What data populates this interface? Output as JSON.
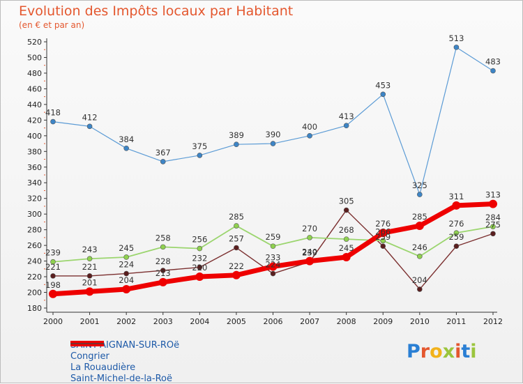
{
  "header": {
    "title": "Evolution des Impôts locaux par Habitant",
    "subtitle": "(en € et par an)"
  },
  "logo": {
    "text": "Proxiti",
    "colors": [
      "#2a7fd4",
      "#e4572e",
      "#f2b21b",
      "#9bc53d",
      "#e4572e",
      "#2a7fd4",
      "#9bc53d"
    ]
  },
  "chart_data": {
    "type": "line",
    "title": "Evolution des Impôts locaux par Habitant",
    "subtitle": "(en € et par an)",
    "x": [
      "2000",
      "2001",
      "2002",
      "2003",
      "2004",
      "2005",
      "2006",
      "2007",
      "2008",
      "2009",
      "2010",
      "2011",
      "2012"
    ],
    "ylim": [
      180,
      520
    ],
    "yticks": [
      180,
      200,
      220,
      240,
      260,
      280,
      300,
      320,
      340,
      360,
      380,
      400,
      420,
      440,
      460,
      480,
      500,
      520
    ],
    "grid": false,
    "legend_position": "bottom-left",
    "series": [
      {
        "name": "SAINT-AIGNAN-SUR-ROë",
        "color": "#ee0000",
        "width": 7,
        "values": [
          198,
          201,
          204,
          213,
          220,
          222,
          233,
          240,
          245,
          276,
          285,
          311,
          313
        ]
      },
      {
        "name": "Congrier",
        "color": "#5b9bd5",
        "width": 1.2,
        "values": [
          418,
          412,
          384,
          367,
          375,
          389,
          390,
          400,
          413,
          453,
          325,
          513,
          483
        ]
      },
      {
        "name": "La Rouaudière",
        "color": "#9bd56e",
        "width": 1.8,
        "values": [
          239,
          243,
          245,
          258,
          256,
          285,
          259,
          270,
          268,
          266,
          246,
          276,
          284
        ]
      },
      {
        "name": "Saint-Michel-de-la-Roë",
        "color": "#7b2f2f",
        "width": 1.4,
        "values": [
          221,
          221,
          224,
          228,
          232,
          257,
          224,
          239,
          305,
          259,
          204,
          259,
          275
        ]
      }
    ],
    "labels": [
      [
        198,
        201,
        204,
        213,
        220,
        222,
        233,
        240,
        245,
        276,
        285,
        311,
        313
      ],
      [
        418,
        412,
        384,
        367,
        375,
        389,
        390,
        400,
        413,
        453,
        325,
        513,
        483
      ],
      [
        239,
        243,
        245,
        258,
        256,
        285,
        259,
        270,
        268,
        266,
        246,
        276,
        284
      ],
      [
        221,
        221,
        224,
        228,
        232,
        257,
        224,
        239,
        305,
        259,
        204,
        259,
        275
      ]
    ]
  }
}
